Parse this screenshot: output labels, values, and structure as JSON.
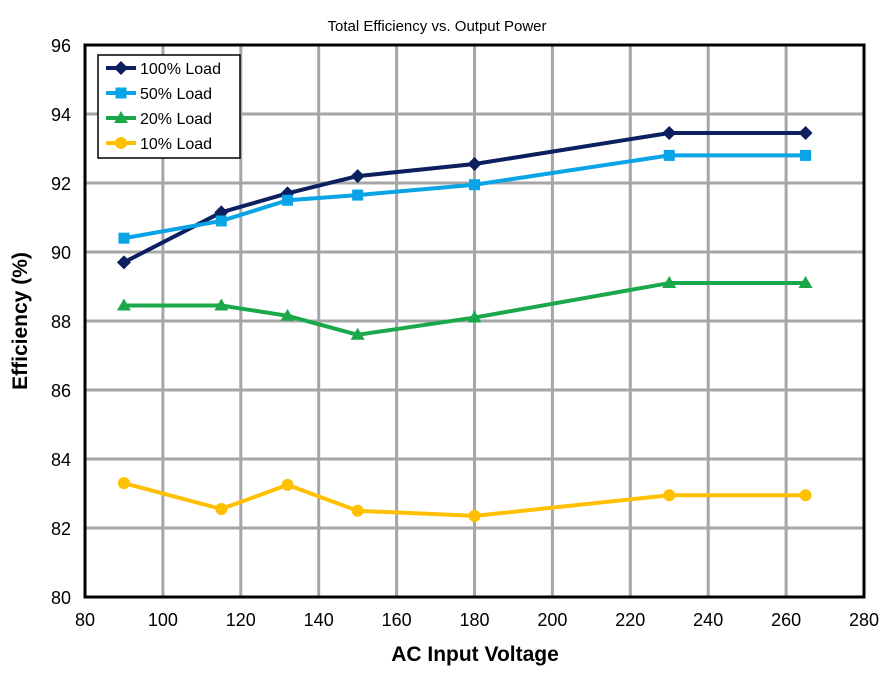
{
  "chart_data": {
    "type": "line",
    "title": "Total Efficiency vs. Output Power",
    "xlabel": "AC Input Voltage",
    "ylabel": "Efficiency (%)",
    "xlim": [
      80,
      280
    ],
    "ylim": [
      80,
      96
    ],
    "xticks": [
      80,
      100,
      120,
      140,
      160,
      180,
      200,
      220,
      240,
      260,
      280
    ],
    "yticks": [
      80,
      82,
      84,
      86,
      88,
      90,
      92,
      94,
      96
    ],
    "grid": true,
    "legend_position": "top-left",
    "x": [
      90,
      115,
      132,
      150,
      180,
      230,
      265
    ],
    "series": [
      {
        "name": "100% Load",
        "color": "#0c1f5e",
        "marker": "diamond",
        "values": [
          89.7,
          91.15,
          91.7,
          92.2,
          92.55,
          93.45,
          93.45
        ]
      },
      {
        "name": "50% Load",
        "color": "#08a4e6",
        "marker": "square",
        "values": [
          90.4,
          90.9,
          91.5,
          91.65,
          91.95,
          92.8,
          92.8
        ]
      },
      {
        "name": "20% Load",
        "color": "#1aa84a",
        "marker": "triangle",
        "values": [
          88.45,
          88.45,
          88.15,
          87.6,
          88.1,
          89.1,
          89.1
        ]
      },
      {
        "name": "10% Load",
        "color": "#ffc000",
        "marker": "circle",
        "values": [
          83.3,
          82.55,
          83.25,
          82.5,
          82.35,
          82.95,
          82.95
        ]
      }
    ]
  }
}
